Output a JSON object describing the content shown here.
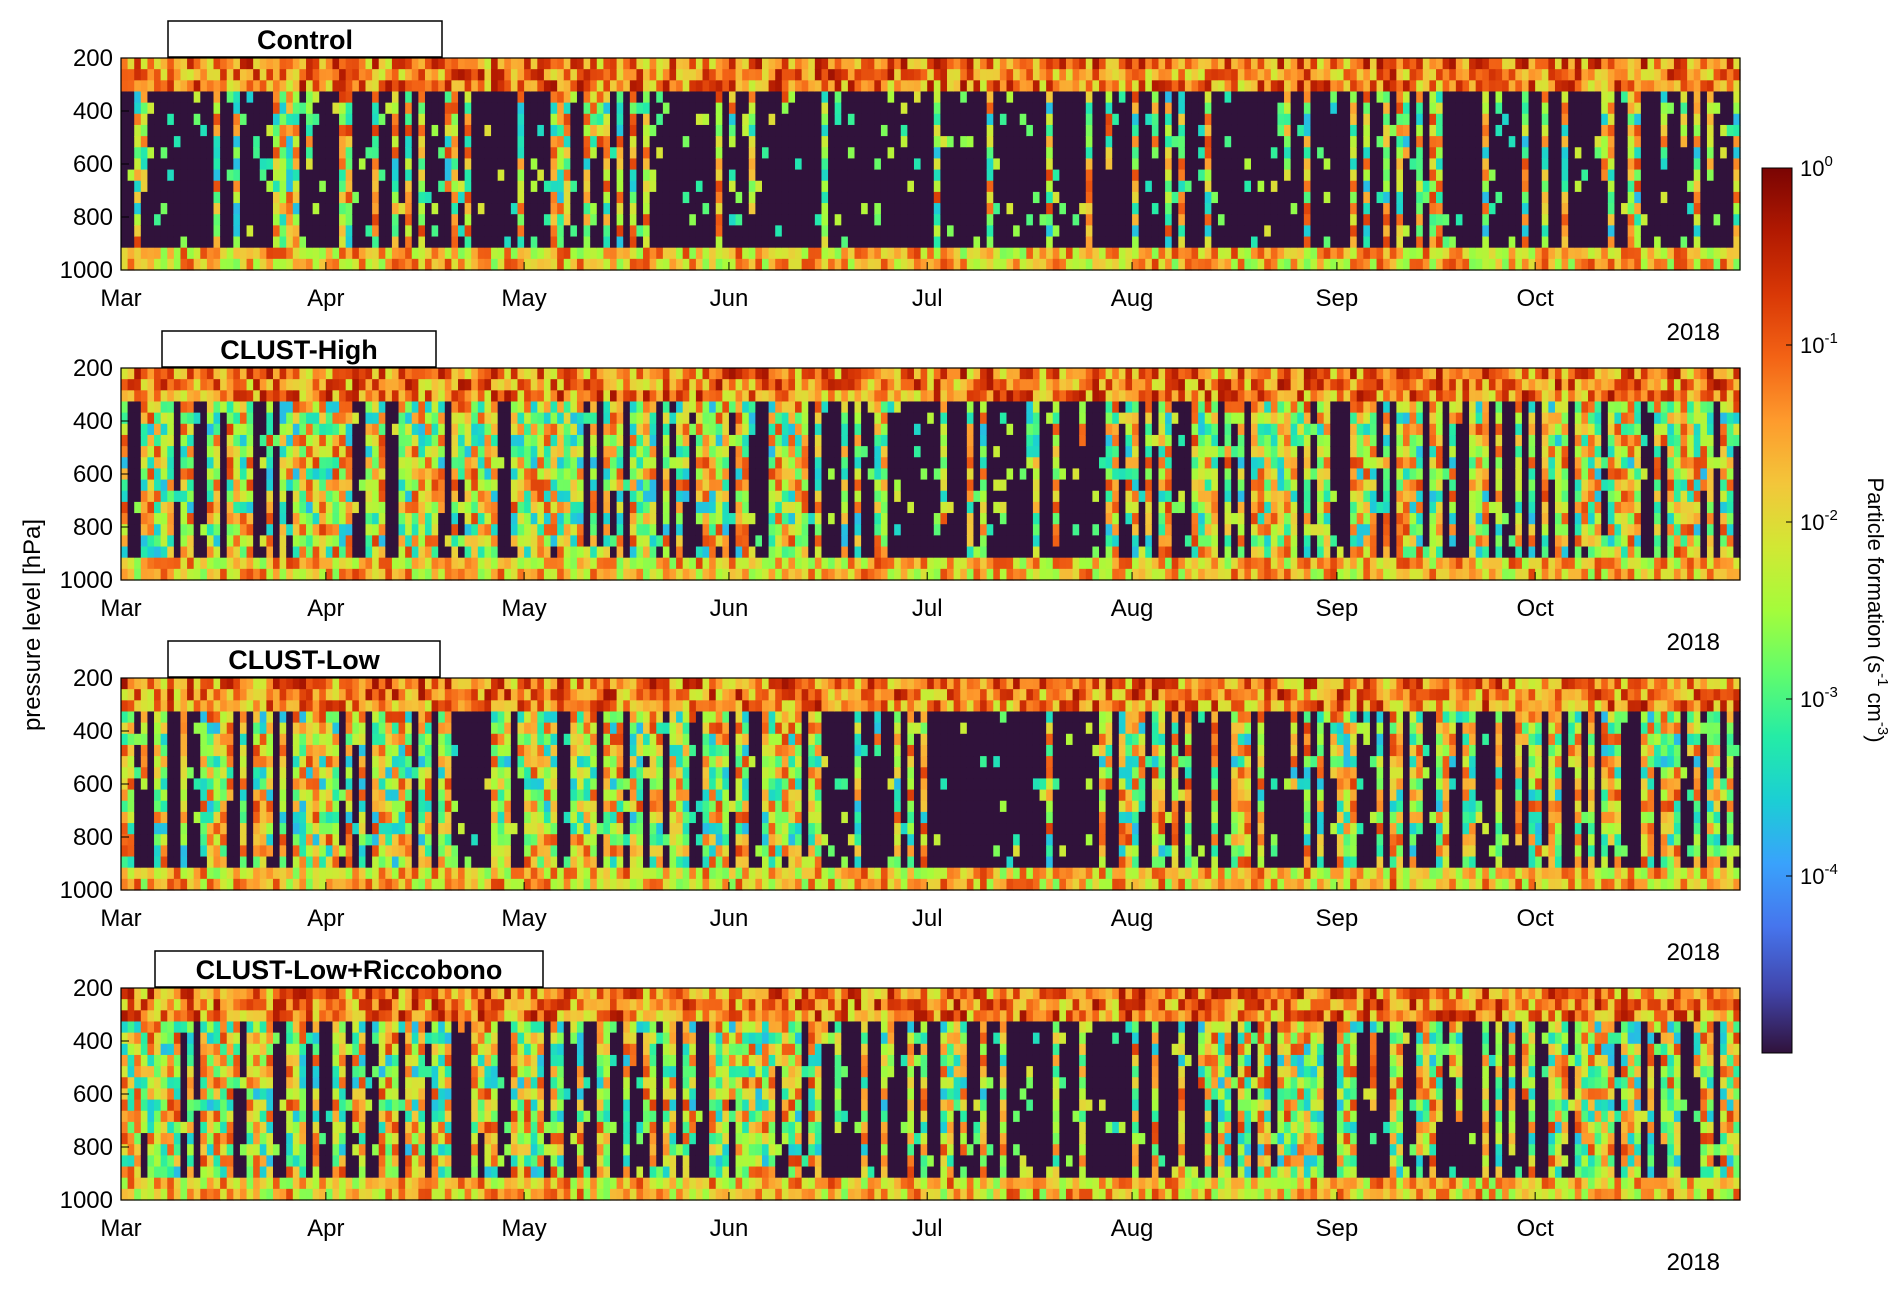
{
  "figure": {
    "ylabel": "pressure level [hPa]",
    "year_label": "2018"
  },
  "chart_data": {
    "type": "heatmap",
    "x_axis": {
      "ticks": [
        "Mar",
        "Apr",
        "May",
        "Jun",
        "Jul",
        "Aug",
        "Sep",
        "Oct"
      ],
      "tick_dates": [
        "2018-03-01",
        "2018-04-01",
        "2018-05-01",
        "2018-06-01",
        "2018-07-01",
        "2018-08-01",
        "2018-09-01",
        "2018-10-01"
      ],
      "range": [
        "2018-03-01",
        "2018-11-01"
      ],
      "year": "2018"
    },
    "y_axis": {
      "label": "pressure level [hPa]",
      "reversed": true,
      "range": [
        200,
        1000
      ],
      "ticks": [
        200,
        400,
        600,
        800,
        1000
      ]
    },
    "colorbar": {
      "label_text": "Particle formation (s",
      "label_sup1": "-1",
      "label_mid": " cm",
      "label_sup2": "-3",
      "label_end": ")",
      "scale": "log",
      "range": [
        1e-05,
        1
      ],
      "tick_base": "10",
      "tick_exponents": [
        "0",
        "-1",
        "-2",
        "-3",
        "-4"
      ],
      "tick_values": [
        1,
        0.1,
        0.01,
        0.001,
        0.0001
      ],
      "colormap": [
        "#30123b",
        "#4145ab",
        "#4675ed",
        "#39a2fc",
        "#1bcfd4",
        "#24eca6",
        "#61fc6c",
        "#a4fc3b",
        "#d1e834",
        "#f3c63a",
        "#fe9b2d",
        "#f36315",
        "#d93806",
        "#b11901",
        "#7a0403"
      ]
    },
    "panels": [
      {
        "title": "Control",
        "seed": 11,
        "activity": 0.3
      },
      {
        "title": "CLUST-High",
        "seed": 23,
        "activity": 0.62
      },
      {
        "title": "CLUST-Low",
        "seed": 37,
        "activity": 0.55
      },
      {
        "title": "CLUST-Low+Riccobono",
        "seed": 53,
        "activity": 0.58
      }
    ]
  }
}
